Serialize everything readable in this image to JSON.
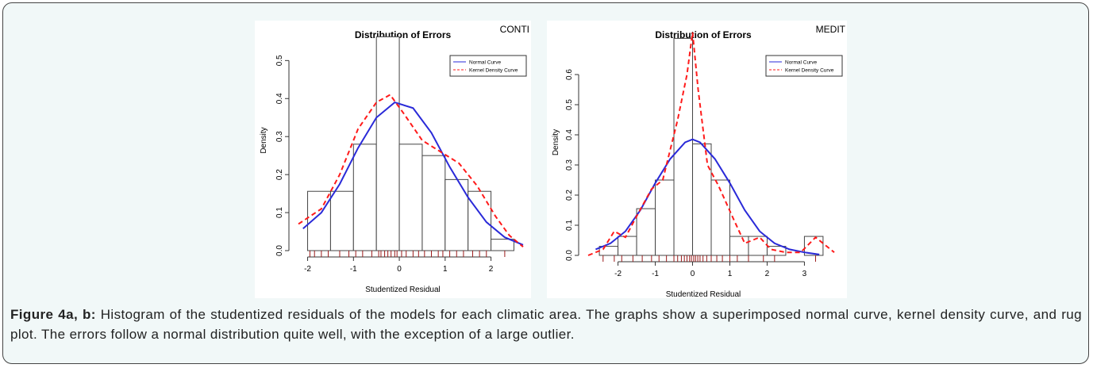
{
  "chart_data": [
    {
      "type": "histogram",
      "title": "Distribution of Errors",
      "corner_label": "CONTI",
      "x_label": "Studentized Residual",
      "y_label": "Density",
      "bins": [
        -2,
        -1.5,
        -1,
        -0.5,
        0,
        0.5,
        1,
        1.5,
        2,
        2.5
      ],
      "counts": [
        0.156,
        0.156,
        0.28,
        0.5625,
        0.28,
        0.25,
        0.187,
        0.156,
        0.03
      ],
      "bar_color": "#ffffff",
      "xlim": [
        -2.2,
        2.7
      ],
      "xticks": [
        -2,
        -1,
        0,
        1,
        2
      ],
      "ylim": [
        0,
        0.58
      ],
      "yticks": [
        {
          "value": 0,
          "label": "0.0"
        },
        0.1,
        0.2,
        0.3,
        0.4,
        0.5
      ],
      "series": [
        {
          "name": "Normal Curve",
          "color": "#2a2ad8",
          "dash": false,
          "x": [
            -2.1,
            -1.7,
            -1.3,
            -0.9,
            -0.5,
            -0.1,
            0.3,
            0.7,
            1.1,
            1.5,
            1.9,
            2.3,
            2.7
          ],
          "values": [
            0.058,
            0.1,
            0.175,
            0.27,
            0.35,
            0.39,
            0.375,
            0.31,
            0.22,
            0.14,
            0.075,
            0.035,
            0.015
          ]
        },
        {
          "name": "Kernel Density Curve",
          "color": "#ff1a1a",
          "dash": true,
          "x": [
            -2.2,
            -1.7,
            -1.3,
            -0.9,
            -0.5,
            -0.2,
            0.1,
            0.5,
            0.9,
            1.3,
            1.7,
            2.1,
            2.4,
            2.7
          ],
          "values": [
            0.07,
            0.11,
            0.2,
            0.32,
            0.39,
            0.41,
            0.36,
            0.29,
            0.26,
            0.23,
            0.17,
            0.09,
            0.04,
            0.01
          ]
        }
      ],
      "rug": [
        -1.95,
        -1.85,
        -1.7,
        -1.55,
        -1.3,
        -1.1,
        -0.95,
        -0.8,
        -0.6,
        -0.45,
        -0.4,
        -0.32,
        -0.25,
        -0.18,
        -0.1,
        -0.05,
        0.05,
        0.15,
        0.3,
        0.42,
        0.55,
        0.7,
        0.85,
        0.95,
        1.1,
        1.25,
        1.4,
        1.6,
        1.75,
        1.9,
        2.3
      ],
      "rug_color": "#9b1b1b",
      "legend": "topright"
    },
    {
      "type": "histogram",
      "title": "Distribution of Errors",
      "corner_label": "MEDIT",
      "x_label": "Studentized Residual",
      "y_label": "Density",
      "bins": [
        -2.5,
        -2,
        -1.5,
        -1,
        -0.5,
        0,
        0.5,
        1,
        1.5,
        2,
        2.5,
        3,
        3.5
      ],
      "counts": [
        0.03,
        0.063,
        0.155,
        0.25,
        0.72,
        0.37,
        0.25,
        0.063,
        0.063,
        0.03,
        0,
        0.063
      ],
      "bar_color": "#ffffff",
      "xlim": [
        -2.8,
        3.8
      ],
      "xticks": [
        -2,
        -1,
        0,
        1,
        2,
        3
      ],
      "ylim": [
        0,
        0.75
      ],
      "yticks": [
        {
          "value": 0,
          "label": "0.0"
        },
        0.1,
        0.2,
        0.3,
        0.4,
        0.5,
        0.6
      ],
      "series": [
        {
          "name": "Normal Curve",
          "color": "#2a2ad8",
          "dash": false,
          "x": [
            -2.6,
            -2.2,
            -1.8,
            -1.4,
            -1,
            -0.6,
            -0.2,
            0,
            0.2,
            0.6,
            1,
            1.4,
            1.8,
            2.2,
            2.6,
            3,
            3.4
          ],
          "values": [
            0.02,
            0.04,
            0.08,
            0.15,
            0.24,
            0.32,
            0.375,
            0.385,
            0.375,
            0.32,
            0.24,
            0.15,
            0.08,
            0.04,
            0.02,
            0.01,
            0.003
          ]
        },
        {
          "name": "Kernel Density Curve",
          "color": "#ff1a1a",
          "dash": true,
          "x": [
            -2.8,
            -2.4,
            -2.1,
            -1.8,
            -1.5,
            -1.1,
            -0.8,
            -0.4,
            -0.15,
            0,
            0.15,
            0.4,
            0.7,
            1.1,
            1.4,
            1.8,
            2.1,
            2.5,
            2.9,
            3.3,
            3.5,
            3.8
          ],
          "values": [
            0,
            0.02,
            0.08,
            0.06,
            0.13,
            0.22,
            0.25,
            0.45,
            0.6,
            0.74,
            0.55,
            0.3,
            0.23,
            0.12,
            0.04,
            0.06,
            0.02,
            0.01,
            0.01,
            0.06,
            0.04,
            0.01
          ]
        }
      ],
      "rug": [
        -2.4,
        -2.1,
        -1.9,
        -1.6,
        -1.35,
        -1.1,
        -0.9,
        -0.7,
        -0.5,
        -0.4,
        -0.3,
        -0.22,
        -0.15,
        -0.08,
        -0.03,
        0.03,
        0.08,
        0.14,
        0.2,
        0.28,
        0.38,
        0.5,
        0.65,
        0.8,
        1.0,
        1.2,
        1.5,
        1.9,
        2.2,
        3.3
      ],
      "rug_color": "#9b1b1b",
      "legend": "topright"
    }
  ],
  "caption": {
    "label": "Figure 4a, b:",
    "text": "Histogram of the studentized residuals of the models for each climatic area. The graphs show a superimposed normal curve, kernel density curve, and rug plot. The errors follow a normal distribution quite well, with the exception of a large outlier."
  }
}
